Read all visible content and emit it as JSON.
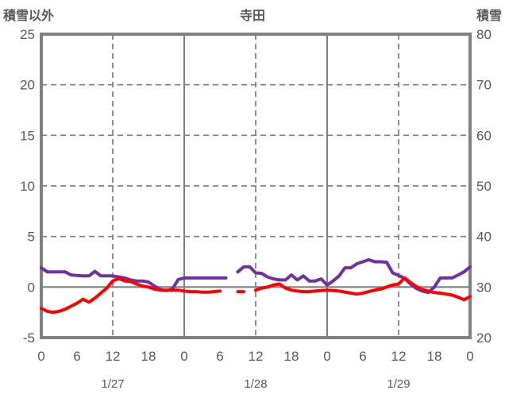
{
  "chart_data": {
    "type": "line",
    "title": "寺田",
    "left_axis": {
      "label": "積雪以外",
      "min": -5,
      "max": 25,
      "ticks": [
        25,
        20,
        15,
        10,
        5,
        0,
        -5
      ]
    },
    "right_axis": {
      "label": "積雪",
      "min": 20,
      "max": 80,
      "ticks": [
        80,
        70,
        60,
        50,
        40,
        30,
        20
      ]
    },
    "x_axis": {
      "hours_total": 72,
      "tick_step_hours": 6,
      "tick_labels": [
        "0",
        "6",
        "12",
        "18",
        "0",
        "6",
        "12",
        "18",
        "0",
        "6",
        "12",
        "18",
        "0"
      ],
      "date_labels": [
        {
          "text": "1/27",
          "hour": 12
        },
        {
          "text": "1/28",
          "hour": 36
        },
        {
          "text": "1/29",
          "hour": 60
        }
      ],
      "dashed_gridline_hours": [
        12,
        36,
        60
      ],
      "solid_gridline_hours": [
        24,
        48
      ]
    },
    "series": [
      {
        "id": "purple",
        "color": "#7030A0",
        "width": 4,
        "values": [
          1.9,
          1.5,
          1.5,
          1.5,
          1.5,
          1.2,
          1.15,
          1.1,
          1.1,
          1.55,
          1.1,
          1.1,
          1.1,
          1.0,
          0.9,
          0.7,
          0.6,
          0.6,
          0.5,
          0.1,
          -0.25,
          -0.35,
          -0.2,
          0.75,
          0.9,
          0.9,
          0.9,
          0.9,
          0.9,
          0.9,
          0.9,
          0.9,
          null,
          1.5,
          2.0,
          2.0,
          1.4,
          1.35,
          1.0,
          0.8,
          0.7,
          0.7,
          1.2,
          0.7,
          1.1,
          0.6,
          0.6,
          0.8,
          0.2,
          0.6,
          1.1,
          1.9,
          1.9,
          2.3,
          2.5,
          2.7,
          2.5,
          2.5,
          2.45,
          1.4,
          1.15,
          0.85,
          0.3,
          -0.15,
          -0.4,
          -0.55,
          0.0,
          0.9,
          0.9,
          0.9,
          1.2,
          1.5,
          2.0
        ]
      },
      {
        "id": "red",
        "color": "#FF0000",
        "width": 4,
        "values": [
          -2.1,
          -2.4,
          -2.5,
          -2.4,
          -2.2,
          -1.9,
          -1.6,
          -1.2,
          -1.5,
          -1.1,
          -0.6,
          -0.1,
          0.6,
          0.85,
          0.6,
          0.55,
          0.3,
          0.1,
          0.0,
          -0.2,
          -0.3,
          -0.3,
          -0.3,
          -0.3,
          -0.4,
          -0.45,
          -0.45,
          -0.5,
          -0.5,
          -0.45,
          -0.4,
          null,
          null,
          -0.45,
          -0.45,
          null,
          -0.3,
          -0.1,
          0.0,
          0.2,
          0.3,
          -0.1,
          -0.3,
          -0.4,
          -0.45,
          -0.45,
          -0.4,
          -0.35,
          -0.3,
          -0.35,
          -0.4,
          -0.5,
          -0.6,
          -0.7,
          -0.6,
          -0.45,
          -0.3,
          -0.2,
          0.0,
          0.2,
          0.3,
          0.9,
          0.45,
          0.05,
          -0.25,
          -0.4,
          -0.55,
          -0.6,
          -0.7,
          -0.8,
          -1.0,
          -1.25,
          -0.95
        ]
      }
    ],
    "colors": {
      "axis_border": "#808080",
      "gridline": "#7F7F7F",
      "zero_line": "#808080",
      "text": "#595959"
    },
    "grid": {
      "zero_line_solid": true,
      "horizontal_dashed": true
    },
    "legend": {
      "visible": false
    }
  }
}
